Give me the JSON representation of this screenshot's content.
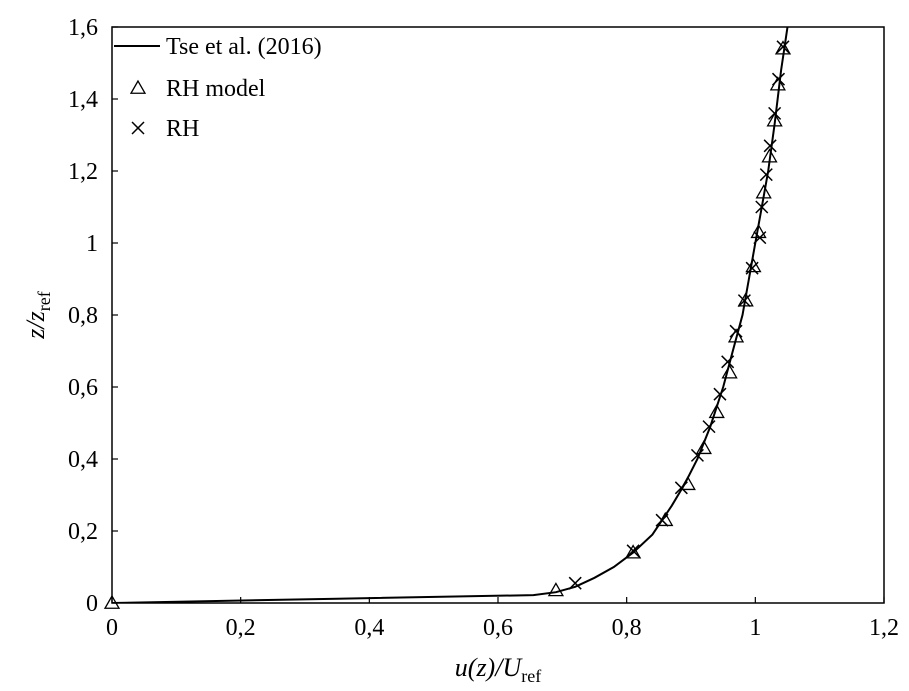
{
  "chart_data": {
    "type": "scatter",
    "xlabel": {
      "main": "u(z)/U",
      "sub": "ref"
    },
    "ylabel": {
      "main": "z/z",
      "sub": "ref"
    },
    "xlim": [
      0,
      1.2
    ],
    "ylim": [
      0,
      1.6
    ],
    "xticks": [
      "0",
      "0,2",
      "0,4",
      "0,6",
      "0,8",
      "1",
      "1,2"
    ],
    "yticks": [
      "0",
      "0,2",
      "0,4",
      "0,6",
      "0,8",
      "1",
      "1,2",
      "1,4",
      "1,6"
    ],
    "xtick_values": [
      0,
      0.2,
      0.4,
      0.6,
      0.8,
      1.0,
      1.2
    ],
    "ytick_values": [
      0,
      0.2,
      0.4,
      0.6,
      0.8,
      1.0,
      1.2,
      1.4,
      1.6
    ],
    "grid": false,
    "legend_position": "top-left",
    "series": [
      {
        "name": "Tse et al. (2016)",
        "kind": "line",
        "color": "#000000",
        "points": [
          [
            0,
            0
          ],
          [
            0.35,
            0.012
          ],
          [
            0.655,
            0.022
          ],
          [
            0.69,
            0.03
          ],
          [
            0.72,
            0.045
          ],
          [
            0.75,
            0.07
          ],
          [
            0.78,
            0.1
          ],
          [
            0.81,
            0.14
          ],
          [
            0.84,
            0.19
          ],
          [
            0.87,
            0.27
          ],
          [
            0.89,
            0.33
          ],
          [
            0.91,
            0.4
          ],
          [
            0.93,
            0.49
          ],
          [
            0.95,
            0.6
          ],
          [
            0.965,
            0.7
          ],
          [
            0.98,
            0.8
          ],
          [
            0.99,
            0.9
          ],
          [
            1.0,
            1.0
          ],
          [
            1.01,
            1.1
          ],
          [
            1.02,
            1.2
          ],
          [
            1.03,
            1.33
          ],
          [
            1.04,
            1.48
          ],
          [
            1.05,
            1.6
          ]
        ]
      },
      {
        "name": "RH model",
        "kind": "markers",
        "marker": "triangle",
        "color": "#000000",
        "points": [
          [
            0.0,
            0.0
          ],
          [
            0.69,
            0.035
          ],
          [
            0.81,
            0.14
          ],
          [
            0.86,
            0.23
          ],
          [
            0.895,
            0.33
          ],
          [
            0.92,
            0.43
          ],
          [
            0.94,
            0.53
          ],
          [
            0.96,
            0.64
          ],
          [
            0.97,
            0.74
          ],
          [
            0.985,
            0.84
          ],
          [
            0.997,
            0.935
          ],
          [
            1.005,
            1.03
          ],
          [
            1.013,
            1.14
          ],
          [
            1.022,
            1.24
          ],
          [
            1.03,
            1.34
          ],
          [
            1.035,
            1.44
          ],
          [
            1.043,
            1.54
          ]
        ]
      },
      {
        "name": "RH",
        "kind": "markers",
        "marker": "cross",
        "color": "#000000",
        "points": [
          [
            0.72,
            0.055
          ],
          [
            0.81,
            0.145
          ],
          [
            0.855,
            0.23
          ],
          [
            0.885,
            0.32
          ],
          [
            0.91,
            0.41
          ],
          [
            0.928,
            0.49
          ],
          [
            0.945,
            0.58
          ],
          [
            0.957,
            0.67
          ],
          [
            0.97,
            0.755
          ],
          [
            0.983,
            0.84
          ],
          [
            0.995,
            0.93
          ],
          [
            1.007,
            1.015
          ],
          [
            1.01,
            1.1
          ],
          [
            1.017,
            1.19
          ],
          [
            1.023,
            1.27
          ],
          [
            1.03,
            1.36
          ],
          [
            1.036,
            1.455
          ],
          [
            1.043,
            1.545
          ]
        ]
      }
    ]
  }
}
